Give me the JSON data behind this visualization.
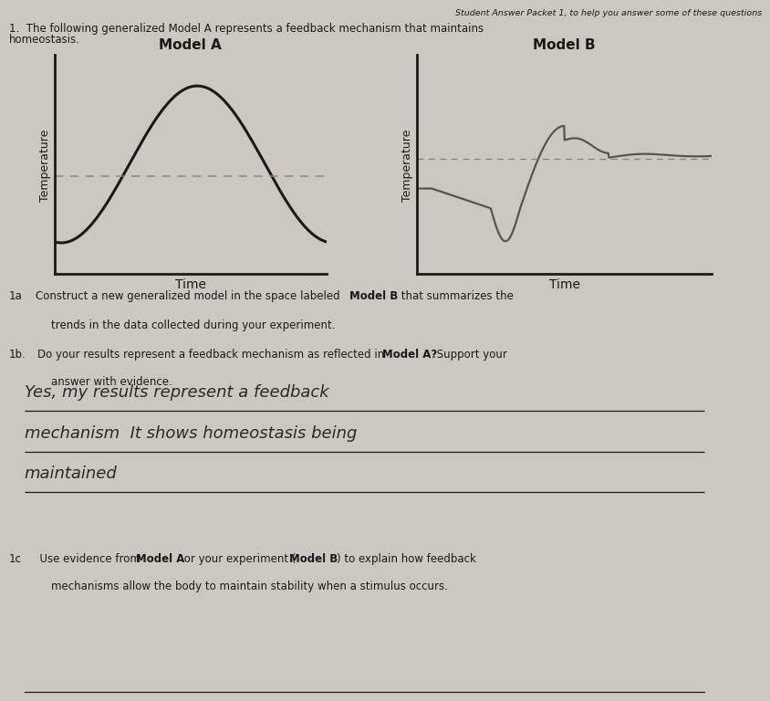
{
  "background_color": "#cdc8bf",
  "header_text": "Student Answer Packet 1, to help you answer some of these questions",
  "intro_line1": "1.  The following generalized Model A represents a feedback mechanism that maintains",
  "intro_line2": "homeostasis.",
  "model_a_title": "Model A",
  "model_b_title": "Model B",
  "xlabel": "Time",
  "ylabel": "Temperature",
  "dashed_line_color": "#888880",
  "curve_color_a": "#1a1a1a",
  "curve_color_b": "#555550",
  "axes_color": "#1a1a1a",
  "q1a_prefix": "1a",
  "q1a_text": "  Construct a new generalized model in the space labeled ",
  "q1a_bold": "Model B",
  "q1a_text2": " that summarizes the",
  "q1a_line2": "     trends in the data collected during your experiment.",
  "q1b_prefix": "1b.",
  "q1b_text": "  Do your results represent a feedback mechanism as reflected in ",
  "q1b_bold": "Model A?",
  "q1b_text2": " Support your",
  "q1b_line2": "      answer with evidence.",
  "q1c_prefix": "1c",
  "q1c_text": "   Use evidence from ",
  "q1c_bold1": "Model A",
  "q1c_text2": " or your experiment (",
  "q1c_bold2": "Model B",
  "q1c_text3": ") to explain how feedback",
  "q1c_line2": "      mechanisms allow the body to maintain stability when a stimulus occurs.",
  "hw_line1": "Yes, my results represent a feedback",
  "hw_line2": "mechanism  It shows homeostasis being",
  "hw_line3": "maintained",
  "text_color": "#1a1a1a",
  "handwriting_color": "#2a2a2a",
  "underline_color": "#1a1a1a",
  "title_fontsize": 9,
  "body_fontsize": 8.5,
  "hw_fontsize": 13
}
